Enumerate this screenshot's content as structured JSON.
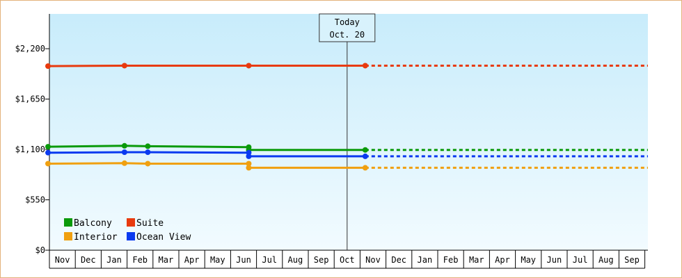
{
  "chart_data": {
    "type": "line",
    "title": "",
    "xlabel": "",
    "ylabel": "",
    "y_ticks": [
      "$0",
      "$550",
      "$1,100",
      "$1,650",
      "$2,200"
    ],
    "y_tick_values": [
      0,
      550,
      1100,
      1650,
      2200
    ],
    "ylim": [
      0,
      2580
    ],
    "x_ticks": [
      "Nov",
      "Dec",
      "Jan",
      "Feb",
      "Mar",
      "Apr",
      "May",
      "Jun",
      "Jul",
      "Aug",
      "Sep",
      "Oct",
      "Nov",
      "Dec",
      "Jan",
      "Feb",
      "Mar",
      "Apr",
      "May",
      "Jun",
      "Jul",
      "Aug",
      "Sep"
    ],
    "today": {
      "label": "Today",
      "date": "Oct. 20",
      "x_index": 11
    },
    "grid": false,
    "legend_position": "bottom-left",
    "series": [
      {
        "name": "Balcony",
        "color": "#0a9a0a",
        "points": [
          [
            0,
            1130
          ],
          [
            2.4,
            1140
          ],
          [
            3.3,
            1135
          ],
          [
            7.2,
            1125
          ],
          [
            7.2,
            1095
          ],
          [
            11.7,
            1095
          ]
        ],
        "projection_to_index": 23
      },
      {
        "name": "Suite",
        "color": "#e83a0e",
        "points": [
          [
            0,
            2010
          ],
          [
            2.4,
            2015
          ],
          [
            7.2,
            2015
          ],
          [
            11.7,
            2015
          ]
        ],
        "projection_to_index": 23
      },
      {
        "name": "Interior",
        "color": "#f0a010",
        "points": [
          [
            0,
            945
          ],
          [
            2.4,
            950
          ],
          [
            3.3,
            945
          ],
          [
            7.2,
            945
          ],
          [
            7.2,
            900
          ],
          [
            11.7,
            900
          ]
        ],
        "projection_to_index": 23
      },
      {
        "name": "Ocean View",
        "color": "#0a3af0",
        "points": [
          [
            0,
            1065
          ],
          [
            2.4,
            1070
          ],
          [
            3.3,
            1070
          ],
          [
            7.2,
            1065
          ],
          [
            7.2,
            1025
          ],
          [
            11.7,
            1025
          ]
        ],
        "projection_to_index": 23
      }
    ]
  }
}
